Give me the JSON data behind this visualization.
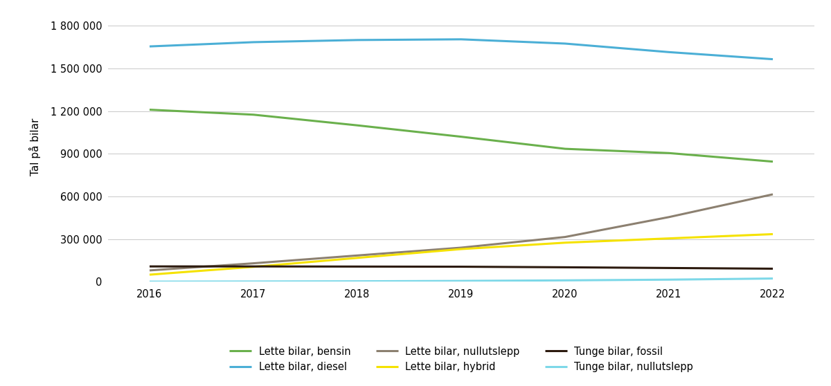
{
  "years": [
    2016,
    2017,
    2018,
    2019,
    2020,
    2021,
    2022
  ],
  "series": [
    {
      "name": "Lette bilar, bensin",
      "values": [
        1210000,
        1175000,
        1100000,
        1020000,
        935000,
        905000,
        845000
      ],
      "color": "#6ab04c",
      "linewidth": 2.2
    },
    {
      "name": "Lette bilar, diesel",
      "values": [
        1655000,
        1685000,
        1700000,
        1705000,
        1675000,
        1615000,
        1565000
      ],
      "color": "#4bafd6",
      "linewidth": 2.2
    },
    {
      "name": "Lette bilar, nullutslepp",
      "values": [
        80000,
        130000,
        185000,
        240000,
        315000,
        455000,
        615000
      ],
      "color": "#8c8070",
      "linewidth": 2.2
    },
    {
      "name": "Lette bilar, hybrid",
      "values": [
        50000,
        105000,
        168000,
        230000,
        275000,
        305000,
        335000
      ],
      "color": "#f5e200",
      "linewidth": 2.2
    },
    {
      "name": "Tunge bilar, fossil",
      "values": [
        108000,
        108000,
        107000,
        106000,
        102000,
        97000,
        92000
      ],
      "color": "#2c1a0e",
      "linewidth": 2.2
    },
    {
      "name": "Tunge bilar, nullutslepp",
      "values": [
        1000,
        2000,
        3500,
        6000,
        10000,
        15000,
        23000
      ],
      "color": "#7dd8e8",
      "linewidth": 2.2
    }
  ],
  "ylabel": "Tal på bilar",
  "ylim": [
    0,
    1900000
  ],
  "yticks": [
    0,
    300000,
    600000,
    900000,
    1200000,
    1500000,
    1800000
  ],
  "xlim": [
    2015.6,
    2022.4
  ],
  "background_color": "#ffffff",
  "grid_color": "#c8c8c8",
  "legend_order": [
    "Lette bilar, bensin",
    "Lette bilar, diesel",
    "Lette bilar, nullutslepp",
    "Lette bilar, hybrid",
    "Tunge bilar, fossil",
    "Tunge bilar, nullutslepp"
  ],
  "figsize": [
    12.0,
    5.58
  ],
  "dpi": 100
}
